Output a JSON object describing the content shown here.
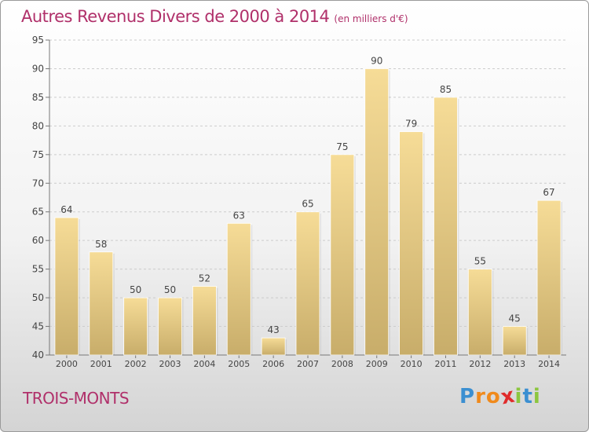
{
  "title": "Autres Revenus Divers de 2000 à 2014",
  "unit_note": "(en milliers d'€)",
  "commune": "TROIS-MONTS",
  "logo": {
    "letters": [
      "P",
      "r",
      "o",
      "x",
      "i",
      "t",
      "i"
    ],
    "colors": [
      "#3b8fd1",
      "#f08a1c",
      "#f08a1c",
      "#e02b2b",
      "#8cc63f",
      "#3b8fd1",
      "#8cc63f"
    ]
  },
  "colors": {
    "title": "#b0306a",
    "bar_light": "#f6dc97",
    "bar_dark": "#c8ad6a",
    "grid": "#cccccc"
  },
  "chart_data": {
    "type": "bar",
    "categories": [
      "2000",
      "2001",
      "2002",
      "2003",
      "2004",
      "2005",
      "2006",
      "2007",
      "2008",
      "2009",
      "2010",
      "2011",
      "2012",
      "2013",
      "2014"
    ],
    "values": [
      64,
      58,
      50,
      50,
      52,
      63,
      43,
      65,
      75,
      90,
      79,
      85,
      55,
      45,
      67
    ],
    "value_labels": [
      "64",
      "58",
      "50",
      "50",
      "52",
      "63",
      "43",
      "65",
      "75",
      "90",
      "79",
      "85",
      "55",
      "45",
      "67"
    ],
    "ylim": [
      40,
      95
    ],
    "yticks": [
      "40",
      "45",
      "50",
      "55",
      "60",
      "65",
      "70",
      "75",
      "80",
      "85",
      "90",
      "95"
    ],
    "grid": true
  }
}
